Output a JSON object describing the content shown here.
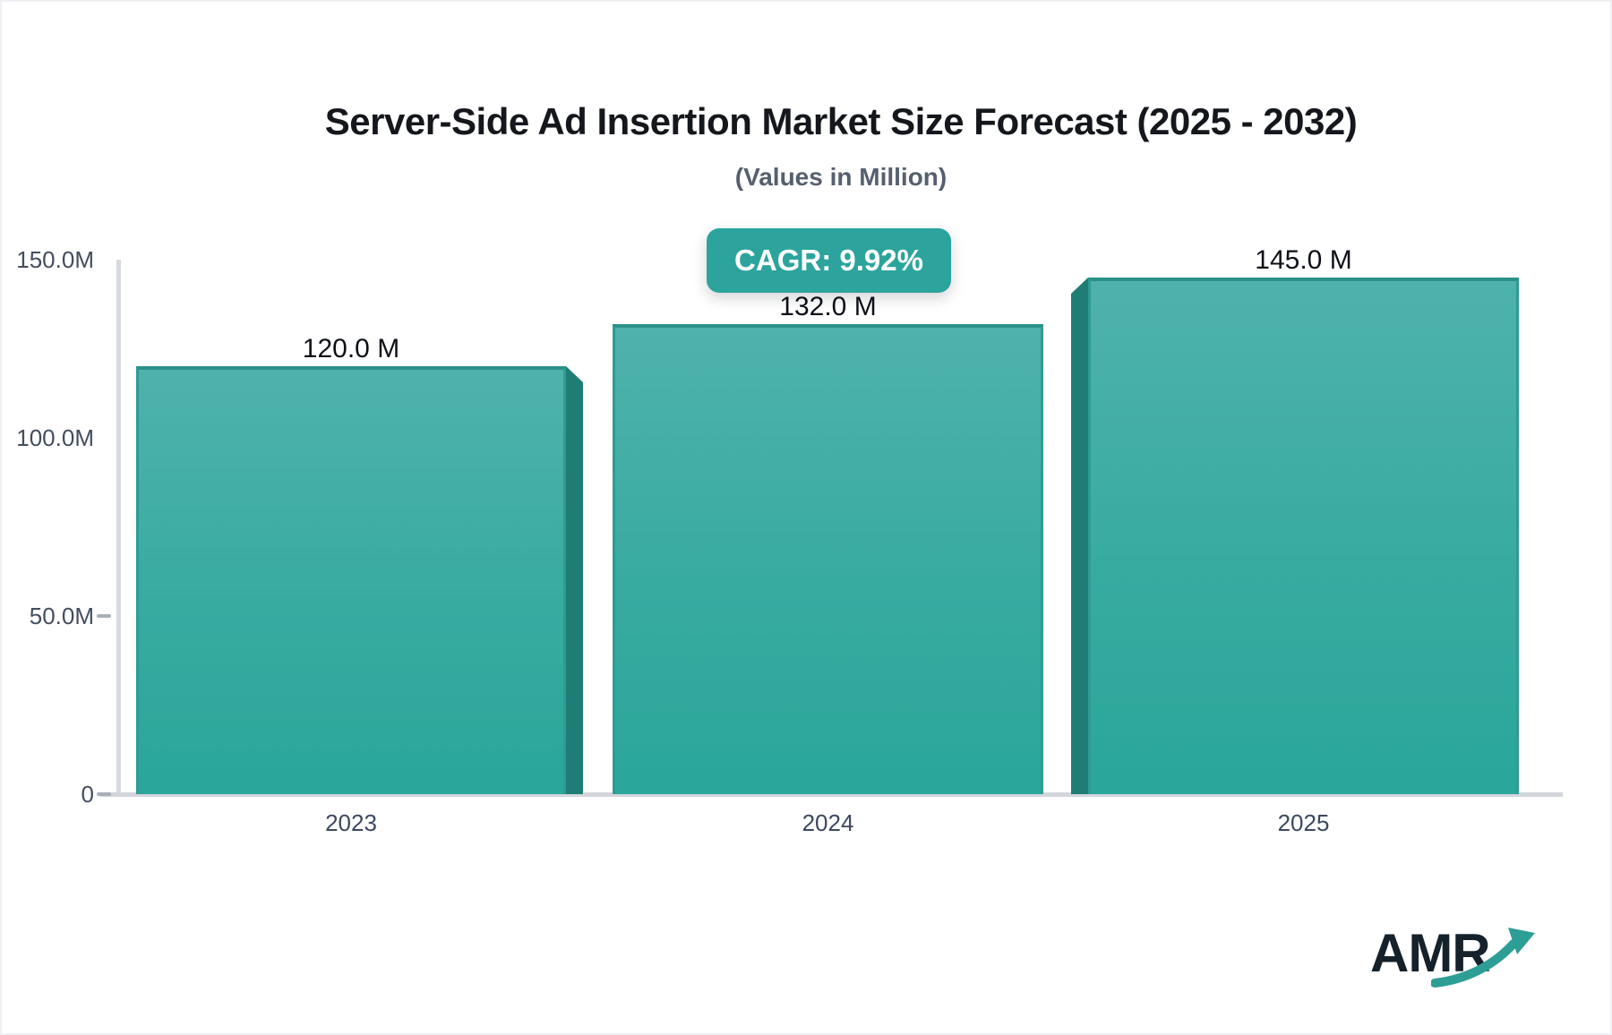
{
  "header": {
    "title": "Server-Side Ad Insertion Market Size Forecast (2025 - 2032)",
    "subtitle": "(Values in Million)"
  },
  "badge": {
    "label": "CAGR: 9.92%",
    "color": "#2ca49d"
  },
  "chart_data": {
    "type": "bar",
    "title": "Server-Side Ad Insertion Market Size Forecast (2025 - 2032)",
    "subtitle": "(Values in Million)",
    "unit": "Million",
    "categories": [
      "2023",
      "2024",
      "2025"
    ],
    "values": [
      120.0,
      132.0,
      145.0
    ],
    "value_labels": [
      "120.0 M",
      "132.0 M",
      "145.0 M"
    ],
    "annotation": "CAGR: 9.92%",
    "xlabel": "",
    "ylabel": "",
    "ylim": [
      0,
      150
    ],
    "yticks": [
      {
        "label": "150.0M",
        "value": 150,
        "dash": false
      },
      {
        "label": "100.0M",
        "value": 100,
        "dash": false
      },
      {
        "label": "50.0M",
        "value": 50,
        "dash": true
      },
      {
        "label": "0",
        "value": 0,
        "dash": true
      }
    ],
    "grid": false,
    "legend": "none",
    "bar_color_top": "#4fb2ac",
    "bar_color_bottom": "#2aa69a",
    "bar_side_color": "#1f7d75",
    "bar_top_border_color": "#2c9088",
    "axis_color": "#d5d8dd",
    "label_color": "#434e5e"
  },
  "logo": {
    "text": "AMR",
    "arrow_color": "#2d9e95"
  }
}
